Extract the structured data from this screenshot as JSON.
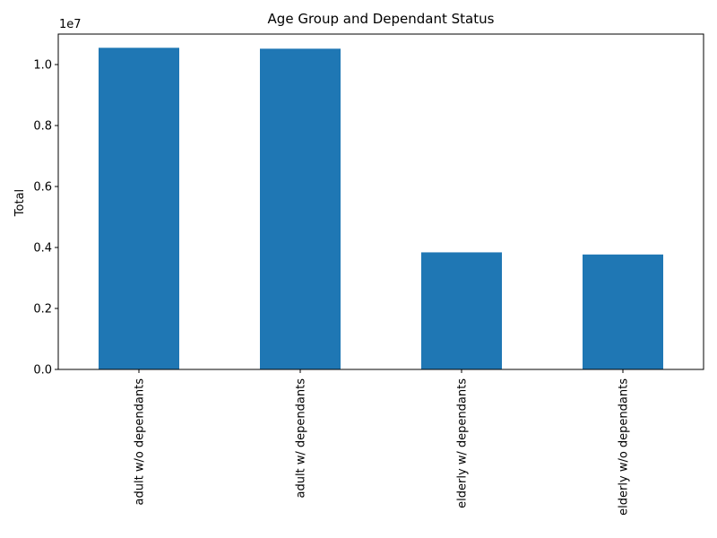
{
  "chart_data": {
    "type": "bar",
    "title": "Age Group and Dependant Status",
    "xlabel": "",
    "ylabel": "Total",
    "offset_label": "1e7",
    "categories": [
      "adult w/o dependants",
      "adult w/ dependants",
      "elderly w/ dependants",
      "elderly w/o dependants"
    ],
    "values": [
      1.055,
      1.052,
      0.384,
      0.377
    ],
    "ylim": [
      0,
      1.1
    ],
    "yticks": [
      0.0,
      0.2,
      0.4,
      0.6,
      0.8,
      1.0
    ],
    "ytick_labels": [
      "0.0",
      "0.2",
      "0.4",
      "0.6",
      "0.8",
      "1.0"
    ],
    "bar_color": "#1f77b4",
    "legend": false,
    "grid": false
  }
}
